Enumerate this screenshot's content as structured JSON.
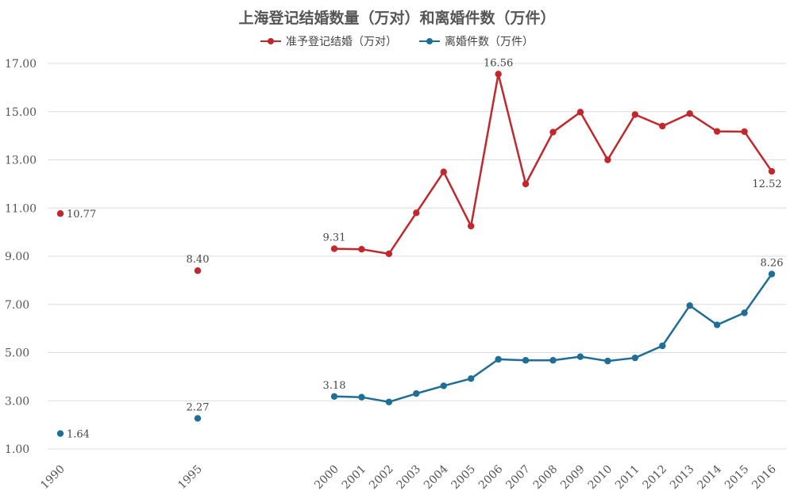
{
  "chart_data": {
    "type": "line",
    "title": "上海登记结婚数量（万对）和离婚件数（万件）",
    "xlabel": "",
    "ylabel": "",
    "ylim": [
      1,
      17
    ],
    "yticks": [
      "1.00",
      "3.00",
      "5.00",
      "7.00",
      "9.00",
      "11.00",
      "13.00",
      "15.00",
      "17.00"
    ],
    "x": [
      "1990",
      "1995",
      "2000",
      "2001",
      "2002",
      "2003",
      "2004",
      "2005",
      "2006",
      "2007",
      "2008",
      "2009",
      "2010",
      "2011",
      "2012",
      "2013",
      "2014",
      "2015",
      "2016"
    ],
    "grid": true,
    "legend_position": "top-center",
    "series": [
      {
        "name": "准予登记结婚（万对）",
        "color": "#c1272d",
        "values": [
          10.77,
          8.4,
          9.31,
          9.29,
          9.1,
          10.8,
          12.5,
          10.25,
          16.56,
          12.0,
          14.15,
          14.98,
          13.0,
          14.88,
          14.4,
          14.92,
          14.18,
          14.17,
          12.52
        ]
      },
      {
        "name": "离婚件数（万件）",
        "color": "#1f6e96",
        "values": [
          1.64,
          2.27,
          3.18,
          3.15,
          2.95,
          3.3,
          3.62,
          3.92,
          4.72,
          4.68,
          4.68,
          4.83,
          4.65,
          4.78,
          5.28,
          6.95,
          6.15,
          6.65,
          8.26
        ]
      }
    ],
    "data_labels": [
      {
        "series": 0,
        "index": 0,
        "text": "10.77"
      },
      {
        "series": 0,
        "index": 1,
        "text": "8.40"
      },
      {
        "series": 0,
        "index": 2,
        "text": "9.31"
      },
      {
        "series": 0,
        "index": 8,
        "text": "16.56"
      },
      {
        "series": 0,
        "index": 18,
        "text": "12.52"
      },
      {
        "series": 1,
        "index": 0,
        "text": "1.64"
      },
      {
        "series": 1,
        "index": 1,
        "text": "2.27"
      },
      {
        "series": 1,
        "index": 2,
        "text": "3.18"
      },
      {
        "series": 1,
        "index": 18,
        "text": "8.26"
      }
    ]
  }
}
